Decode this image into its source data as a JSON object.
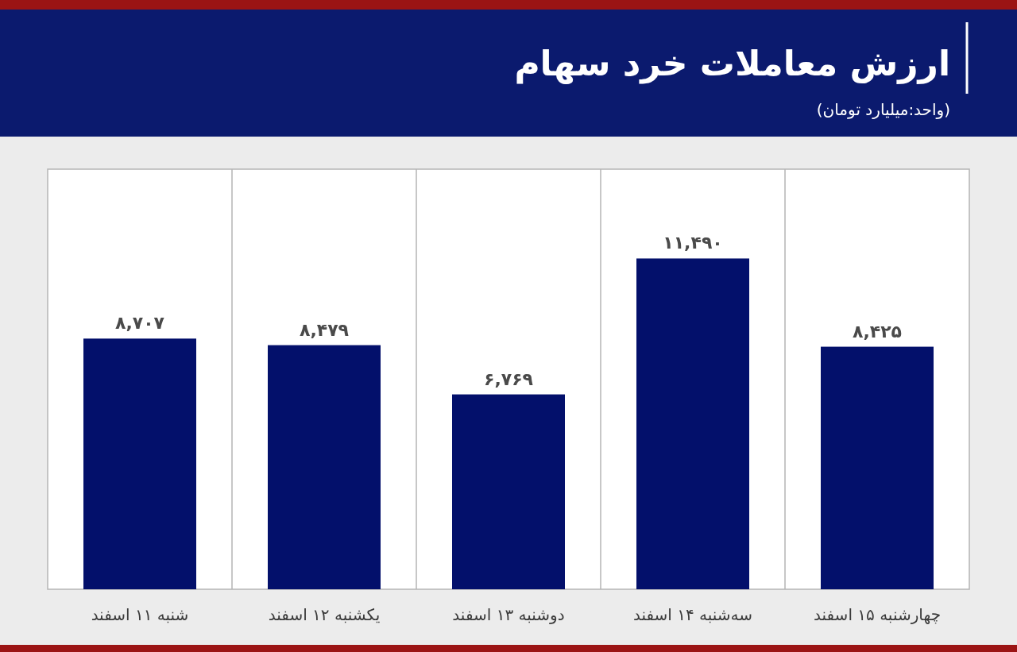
{
  "chart_data": {
    "type": "bar",
    "title": "ارزش معاملات خرد سهام",
    "subtitle": "(واحد:میلیارد تومان)",
    "categories": [
      "شنبه ۱۱ اسفند",
      "یکشنبه ۱۲ اسفند",
      "دوشنبه ۱۳ اسفند",
      "سه‌شنبه ۱۴ اسفند",
      "چهارشنبه ۱۵ اسفند"
    ],
    "values": [
      8707,
      8479,
      6769,
      11490,
      8425
    ],
    "value_labels": [
      "۸,۷۰۷",
      "۸,۴۷۹",
      "۶,۷۶۹",
      "۱۱,۴۹۰",
      "۸,۴۲۵"
    ],
    "color": "#03106b",
    "grid": "x"
  }
}
